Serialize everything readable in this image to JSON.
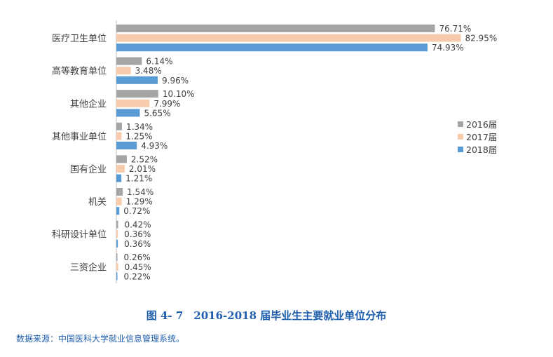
{
  "chart_data": {
    "type": "bar",
    "orientation": "horizontal",
    "categories": [
      "医疗卫生单位",
      "高等教育单位",
      "其他企业",
      "其他事业单位",
      "国有企业",
      "机关",
      "科研设计单位",
      "三资企业"
    ],
    "series": [
      {
        "name": "2016届",
        "color": "#a5a5a5",
        "values": [
          76.71,
          6.14,
          10.1,
          1.34,
          2.52,
          1.54,
          0.42,
          0.26
        ],
        "labels": [
          "76.71%",
          "6.14%",
          "10.10%",
          "1.34%",
          "2.52%",
          "1.54%",
          "0.42%",
          "0.26%"
        ]
      },
      {
        "name": "2017届",
        "color": "#f8cbad",
        "values": [
          82.95,
          3.48,
          7.99,
          1.25,
          2.01,
          1.29,
          0.36,
          0.45
        ],
        "labels": [
          "82.95%",
          "3.48%",
          "7.99%",
          "1.25%",
          "2.01%",
          "1.29%",
          "0.36%",
          "0.45%"
        ]
      },
      {
        "name": "2018届",
        "color": "#5b9bd5",
        "values": [
          74.93,
          9.96,
          5.65,
          4.93,
          1.21,
          0.72,
          0.36,
          0.22
        ],
        "labels": [
          "74.93%",
          "9.96%",
          "5.65%",
          "4.93%",
          "1.21%",
          "0.72%",
          "0.36%",
          "0.22%"
        ]
      }
    ],
    "legend_position": "right",
    "grid": false
  },
  "caption": "图 4- 7　2016-2018 届毕业生主要就业单位分布",
  "source_note": "数据来源：中国医科大学就业信息管理系统。"
}
